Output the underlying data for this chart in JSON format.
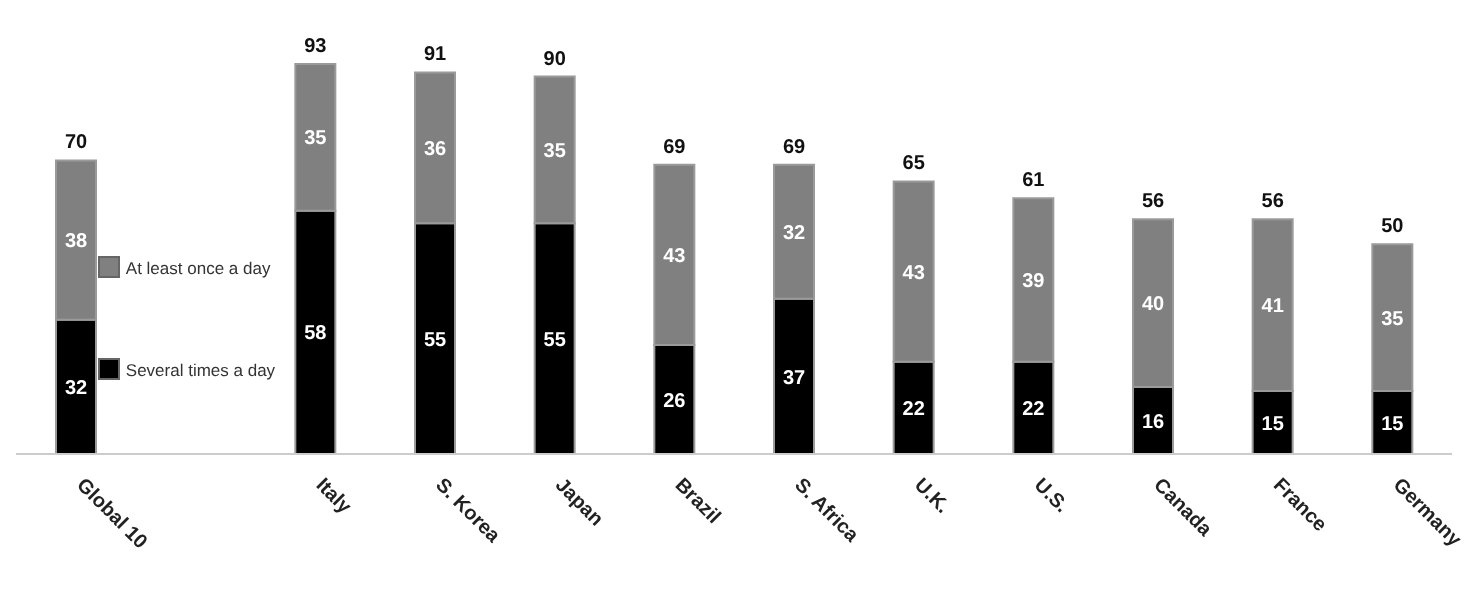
{
  "chart_data": {
    "type": "bar",
    "stacked": true,
    "data_labels": true,
    "legend": "left",
    "grid": false,
    "categories": [
      "Global 10",
      "Italy",
      "S. Korea",
      "Japan",
      "Brazil",
      "S. Africa",
      "U.K.",
      "U.S.",
      "Canada",
      "France",
      "Germany"
    ],
    "series": [
      {
        "name": "Several times a day",
        "color": "#000000",
        "values": [
          32,
          58,
          55,
          55,
          26,
          37,
          22,
          22,
          16,
          15,
          15
        ]
      },
      {
        "name": "At least once a day",
        "color": "#808080",
        "values": [
          38,
          35,
          36,
          35,
          43,
          32,
          43,
          39,
          40,
          41,
          35
        ]
      }
    ],
    "totals": [
      "70",
      "93",
      "91",
      "90",
      "69",
      "69",
      "65",
      "61",
      "56",
      "56",
      "50"
    ]
  }
}
